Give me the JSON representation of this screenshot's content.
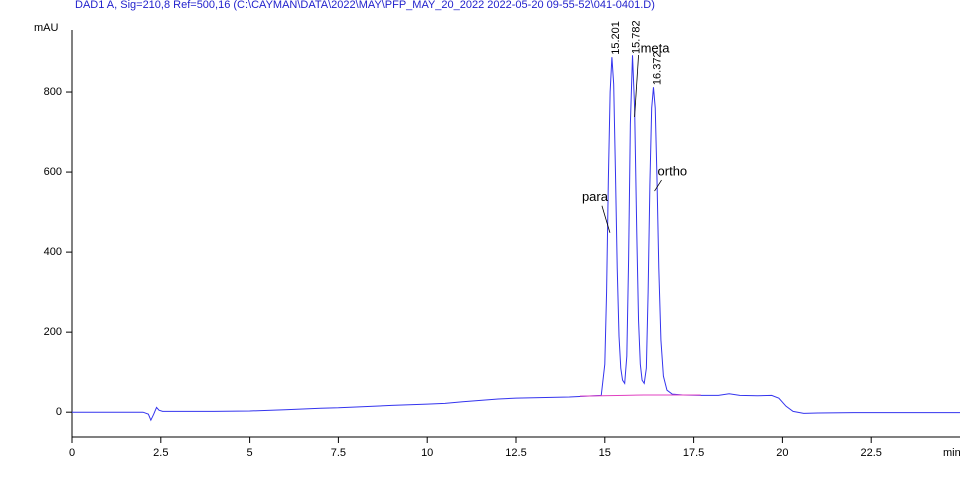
{
  "chart_data": {
    "type": "line",
    "title": "DAD1 A, Sig=210,8 Ref=500,16 (C:\\CAYMAN\\DATA\\2022\\MAY\\PFP_MAY_20_2022 2022-05-20 09-55-52\\041-0401.D)",
    "y_label": "mAU",
    "x_label": "min",
    "xlim": [
      0,
      25
    ],
    "ylim": [
      -62,
      955
    ],
    "xticks": [
      0,
      2.5,
      5,
      7.5,
      10,
      12.5,
      15,
      17.5,
      20,
      22.5
    ],
    "yticks": [
      0,
      200,
      400,
      600,
      800
    ],
    "series": [
      {
        "color": "#3434ee",
        "x": [
          0,
          1,
          2,
          2.15,
          2.22,
          2.3,
          2.38,
          2.45,
          2.55,
          3,
          4,
          5,
          6,
          7,
          7.5,
          8,
          9,
          10,
          10.5,
          11,
          12,
          12.5,
          13,
          14,
          14.5,
          14.9,
          15.0,
          15.05,
          15.1,
          15.15,
          15.2,
          15.25,
          15.3,
          15.35,
          15.4,
          15.45,
          15.5,
          15.56,
          15.62,
          15.67,
          15.72,
          15.78,
          15.84,
          15.9,
          15.95,
          16.0,
          16.05,
          16.11,
          16.17,
          16.22,
          16.27,
          16.32,
          16.37,
          16.42,
          16.47,
          16.52,
          16.58,
          16.65,
          16.75,
          16.9,
          17.2,
          17.7,
          18.2,
          18.5,
          18.8,
          19.3,
          19.7,
          19.9,
          20.1,
          20.3,
          20.6,
          21,
          22,
          23,
          24,
          25
        ],
        "values": [
          0,
          0,
          0,
          -5,
          -20,
          -5,
          12,
          5,
          2,
          2,
          2,
          3,
          6,
          10,
          11,
          13,
          17,
          20,
          22,
          26,
          33,
          35,
          36,
          38,
          40,
          42,
          120,
          300,
          580,
          800,
          887,
          820,
          600,
          360,
          190,
          110,
          80,
          72,
          140,
          380,
          720,
          892,
          760,
          450,
          230,
          120,
          80,
          72,
          110,
          300,
          570,
          760,
          812,
          760,
          580,
          360,
          180,
          90,
          55,
          45,
          43,
          42,
          42,
          46,
          42,
          41,
          42,
          35,
          15,
          2,
          -3,
          -2,
          -1,
          -1,
          -1,
          -1
        ]
      },
      {
        "color": "#e040c0",
        "x": [
          14.3,
          15.56,
          16.11,
          17.7
        ],
        "values": [
          40,
          42,
          43,
          43
        ]
      }
    ],
    "peaks": [
      {
        "time": 15.201,
        "name": "para"
      },
      {
        "time": 15.782,
        "name": "meta"
      },
      {
        "time": 16.372,
        "name": "ortho"
      }
    ]
  }
}
